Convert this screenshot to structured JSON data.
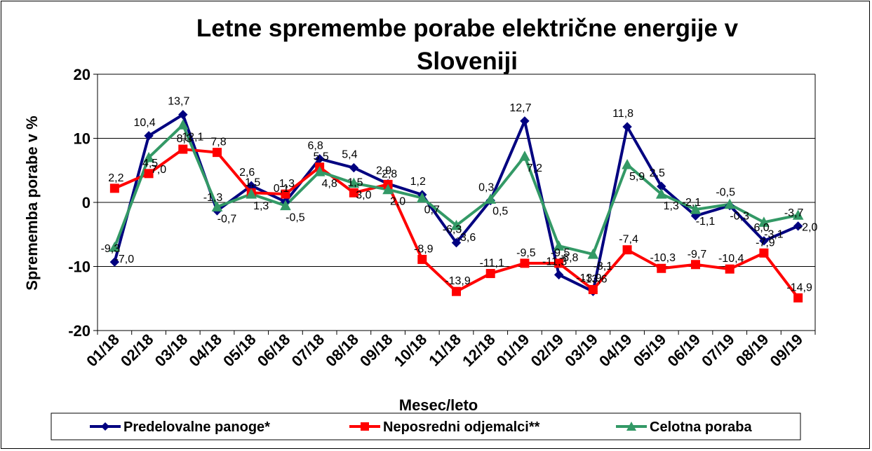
{
  "chart_data": {
    "type": "line",
    "title": "Letne spremembe porabe električne energije v Sloveniji",
    "title_lines": [
      "Letne spremembe porabe električne energije v",
      "Sloveniji"
    ],
    "xlabel": "Mesec/leto",
    "ylabel": "Sprememba porabe v %",
    "ylim": [
      -20,
      20
    ],
    "yticks": [
      "20",
      "10",
      "0",
      "-10",
      "-20"
    ],
    "ytick_values": [
      20,
      10,
      0,
      -10,
      -20
    ],
    "grid": true,
    "legend_position": "bottom",
    "categories": [
      "01/18",
      "02/18",
      "03/18",
      "04/18",
      "05/18",
      "06/18",
      "07/18",
      "08/18",
      "09/18",
      "10/18",
      "11/18",
      "12/18",
      "01/19",
      "02/19",
      "03/19",
      "04/19",
      "05/19",
      "06/19",
      "07/19",
      "08/19",
      "09/19"
    ],
    "series": [
      {
        "name": "Predelovalne panoge*",
        "color": "#000080",
        "marker": "diamond",
        "values": [
          -9.3,
          10.4,
          13.7,
          -1.3,
          2.6,
          0.1,
          6.8,
          5.4,
          2.9,
          1.2,
          -6.3,
          0.3,
          12.7,
          -11.3,
          -13.9,
          11.8,
          2.5,
          -2.1,
          -0.5,
          -6.0,
          -3.7
        ],
        "labels": [
          "-9,3",
          "10,4",
          "13,7",
          "-1,3",
          "2,6",
          "0,1",
          "6,8",
          "5,4",
          "2,9",
          "1,2",
          "-6,3",
          "0,3",
          "12,7",
          "-11,3",
          "-13,9",
          "11,8",
          "2,5",
          "-2,1",
          "-0,5",
          "-6,0",
          "-3,7"
        ]
      },
      {
        "name": "Neposredni odjemalci**",
        "color": "#ff0000",
        "marker": "square",
        "values": [
          2.2,
          4.5,
          8.3,
          7.8,
          1.5,
          1.3,
          5.5,
          1.5,
          2.8,
          -8.9,
          -13.9,
          -11.1,
          -9.5,
          -9.5,
          -13.6,
          -7.4,
          -10.3,
          -9.7,
          -10.4,
          -7.9,
          -14.9
        ],
        "labels": [
          "2,2",
          "4,5",
          "8,3",
          "7,8",
          "1,5",
          "1,3",
          "5,5",
          "1,5",
          "2,8",
          "-8,9",
          "-13,9",
          "-11,1",
          "-9,5",
          "-9,5",
          "-13,6",
          "-7,4",
          "-10,3",
          "-9,7",
          "-10,4",
          "-7,9",
          "-14,9"
        ]
      },
      {
        "name": "Celotna poraba",
        "color": "#339966",
        "marker": "triangle",
        "values": [
          -7.0,
          7.0,
          12.1,
          -0.7,
          1.3,
          -0.5,
          4.8,
          3.0,
          2.0,
          0.7,
          -3.6,
          0.5,
          7.2,
          -6.8,
          -8.1,
          5.9,
          1.3,
          -1.1,
          -0.3,
          -3.1,
          -2.0
        ],
        "labels": [
          "-7,0",
          "7,0",
          "12,1",
          "-0,7",
          "1,3",
          "-0,5",
          "4,8",
          "3,0",
          "2,0",
          "0,7",
          "-3,6",
          "0,5",
          "7,2",
          "-6,8",
          "-8,1",
          "5,9",
          "1,3",
          "-1,1",
          "-0,3",
          "-3,1",
          "-2,0"
        ]
      }
    ]
  }
}
